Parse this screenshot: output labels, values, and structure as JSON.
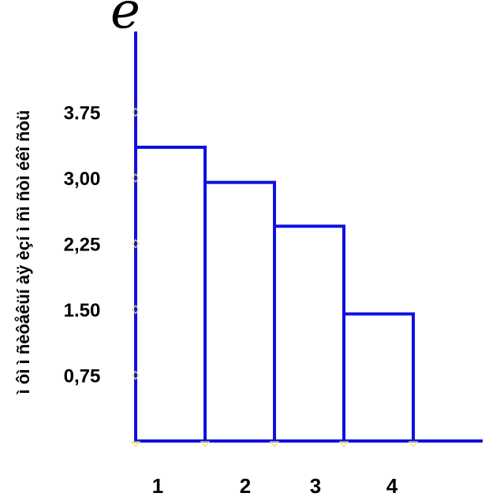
{
  "chart_data": {
    "type": "bar",
    "title": "",
    "y_axis_symbol": "e",
    "ylabel": "ì ôì ì ñèôåêüí àÿ èçí ì ñì ñòì éêî ñòü",
    "categories": [
      "1",
      "2",
      "3",
      "4"
    ],
    "values": [
      3.35,
      2.95,
      2.45,
      1.45
    ],
    "yticks": [
      "0,75",
      "1.50",
      "2,25",
      "3,00",
      "3.75"
    ],
    "ytick_values": [
      0.75,
      1.5,
      2.25,
      3.0,
      3.75
    ],
    "ylim": [
      0,
      3.75
    ],
    "grid": false,
    "colors": {
      "bar_stroke": "#1010e0",
      "axis": "#1010e0",
      "tick_marker": "#e8e070",
      "text": "#000000"
    }
  }
}
